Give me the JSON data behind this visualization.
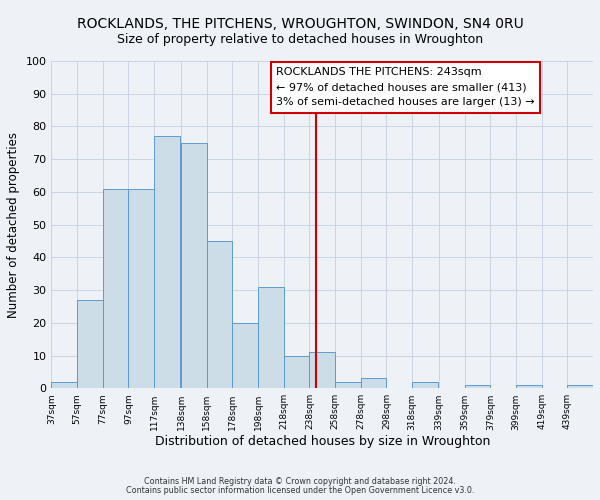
{
  "title": "ROCKLANDS, THE PITCHENS, WROUGHTON, SWINDON, SN4 0RU",
  "subtitle": "Size of property relative to detached houses in Wroughton",
  "xlabel": "Distribution of detached houses by size in Wroughton",
  "ylabel": "Number of detached properties",
  "bin_labels": [
    "37sqm",
    "57sqm",
    "77sqm",
    "97sqm",
    "117sqm",
    "138sqm",
    "158sqm",
    "178sqm",
    "198sqm",
    "218sqm",
    "238sqm",
    "258sqm",
    "278sqm",
    "298sqm",
    "318sqm",
    "339sqm",
    "359sqm",
    "379sqm",
    "399sqm",
    "419sqm",
    "439sqm"
  ],
  "bin_edges": [
    37,
    57,
    77,
    97,
    117,
    138,
    158,
    178,
    198,
    218,
    238,
    258,
    278,
    298,
    318,
    339,
    359,
    379,
    399,
    419,
    439
  ],
  "bar_heights": [
    2,
    27,
    61,
    61,
    77,
    75,
    45,
    20,
    31,
    10,
    11,
    2,
    3,
    0,
    2,
    0,
    1,
    0,
    1,
    0,
    1
  ],
  "bar_color": "#ccdde8",
  "bar_edge_color": "#5b9bd5",
  "vline_x": 243,
  "vline_color": "#cc0000",
  "annotation_box_title": "ROCKLANDS THE PITCHENS: 243sqm",
  "annotation_line1": "← 97% of detached houses are smaller (413)",
  "annotation_line2": "3% of semi-detached houses are larger (13) →",
  "annotation_box_edge_color": "#cc0000",
  "ylim": [
    0,
    100
  ],
  "yticks": [
    0,
    10,
    20,
    30,
    40,
    50,
    60,
    70,
    80,
    90,
    100
  ],
  "bg_color": "#eef2f7",
  "grid_color": "#c5cfe0",
  "footnote1": "Contains HM Land Registry data © Crown copyright and database right 2024.",
  "footnote2": "Contains public sector information licensed under the Open Government Licence v3.0.",
  "title_fontsize": 10,
  "subtitle_fontsize": 9,
  "xlabel_fontsize": 9,
  "ylabel_fontsize": 8.5
}
